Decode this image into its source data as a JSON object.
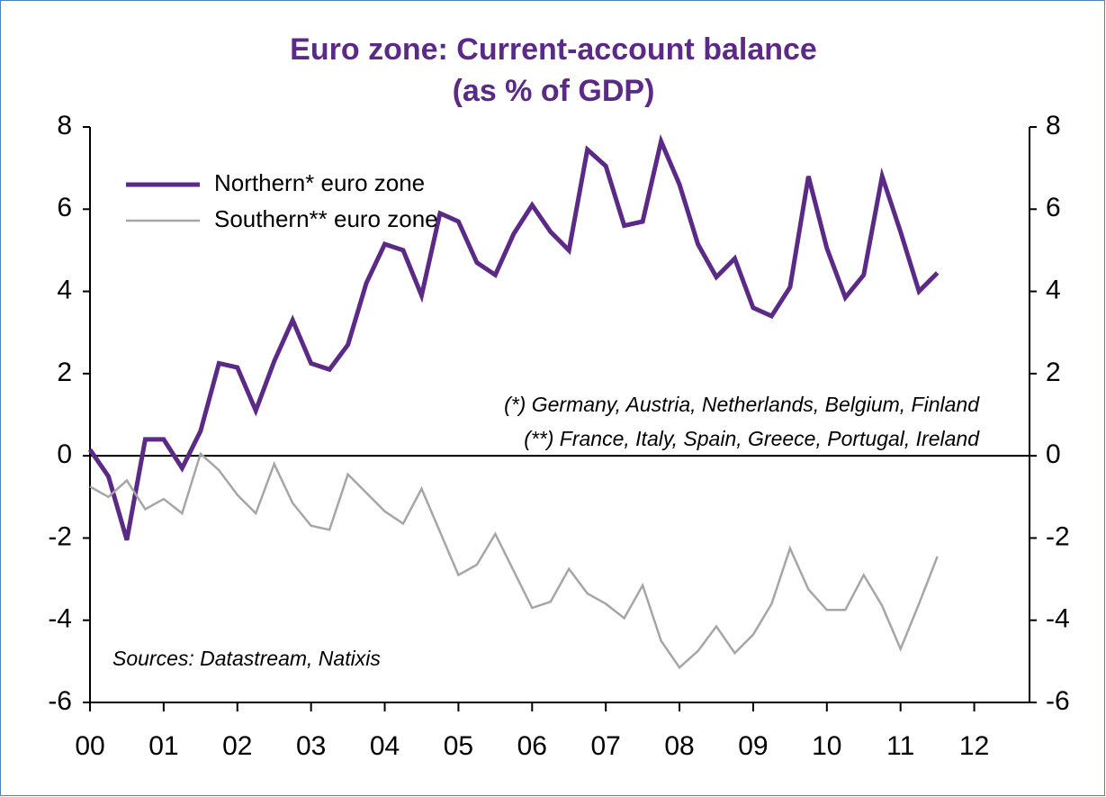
{
  "chart_data": {
    "type": "line",
    "title": [
      "Euro zone: Current-account balance",
      "(as % of GDP)"
    ],
    "annotations": [
      "(*) Germany, Austria, Netherlands, Belgium, Finland",
      "(**) France, Italy, Spain, Greece, Portugal, Ireland"
    ],
    "source": "Sources: Datastream, Natixis",
    "x": [
      0,
      0.25,
      0.5,
      0.75,
      1,
      1.25,
      1.5,
      1.75,
      2,
      2.25,
      2.5,
      2.75,
      3,
      3.25,
      3.5,
      3.75,
      4,
      4.25,
      4.5,
      4.75,
      5,
      5.25,
      5.5,
      5.75,
      6,
      6.25,
      6.5,
      6.75,
      7,
      7.25,
      7.5,
      7.75,
      8,
      8.25,
      8.5,
      8.75,
      9,
      9.25,
      9.5,
      9.75,
      10,
      10.25,
      10.5,
      10.75,
      11,
      11.25,
      11.5
    ],
    "series": [
      {
        "name": "Northern* euro zone",
        "color": "#5b2a86",
        "width": 5,
        "values": [
          0.15,
          -0.5,
          -2.05,
          0.4,
          0.4,
          -0.3,
          0.6,
          2.25,
          2.15,
          1.1,
          2.3,
          3.3,
          2.25,
          2.1,
          2.7,
          4.2,
          5.15,
          5.0,
          3.9,
          5.9,
          5.7,
          4.7,
          4.4,
          5.4,
          6.1,
          5.45,
          5.0,
          7.45,
          7.05,
          5.6,
          5.7,
          7.65,
          6.6,
          5.15,
          4.35,
          4.8,
          3.6,
          3.4,
          4.1,
          6.8,
          5.05,
          3.85,
          4.4,
          6.8,
          5.45,
          4.0,
          4.45
        ]
      },
      {
        "name": "Southern** euro zone",
        "color": "#a6a6a6",
        "width": 2.5,
        "values": [
          -0.75,
          -1.0,
          -0.6,
          -1.3,
          -1.05,
          -1.4,
          0.05,
          -0.35,
          -0.95,
          -1.4,
          -0.2,
          -1.15,
          -1.7,
          -1.8,
          -0.45,
          -0.9,
          -1.35,
          -1.65,
          -0.8,
          -1.85,
          -2.9,
          -2.65,
          -1.9,
          -2.8,
          -3.7,
          -3.55,
          -2.75,
          -3.35,
          -3.6,
          -3.95,
          -3.15,
          -4.5,
          -5.15,
          -4.75,
          -4.15,
          -4.8,
          -4.35,
          -3.6,
          -2.25,
          -3.25,
          -3.75,
          -3.75,
          -2.9,
          -3.65,
          -4.7,
          -3.6,
          -2.45
        ]
      }
    ],
    "xlim": [
      0,
      12.75
    ],
    "xticks": [
      {
        "value": 0,
        "label": "00"
      },
      {
        "value": 1,
        "label": "01"
      },
      {
        "value": 2,
        "label": "02"
      },
      {
        "value": 3,
        "label": "03"
      },
      {
        "value": 4,
        "label": "04"
      },
      {
        "value": 5,
        "label": "05"
      },
      {
        "value": 6,
        "label": "06"
      },
      {
        "value": 7,
        "label": "07"
      },
      {
        "value": 8,
        "label": "08"
      },
      {
        "value": 9,
        "label": "09"
      },
      {
        "value": 10,
        "label": "10"
      },
      {
        "value": 11,
        "label": "11"
      },
      {
        "value": 12,
        "label": "12"
      }
    ],
    "ylim": [
      -6,
      8
    ],
    "yticks": [
      -6,
      -4,
      -2,
      0,
      2,
      4,
      6,
      8
    ],
    "y2lim": [
      -6,
      8
    ],
    "y2ticks": [
      -6,
      -4,
      -2,
      0,
      2,
      4,
      6,
      8
    ],
    "legend": "top-left"
  }
}
